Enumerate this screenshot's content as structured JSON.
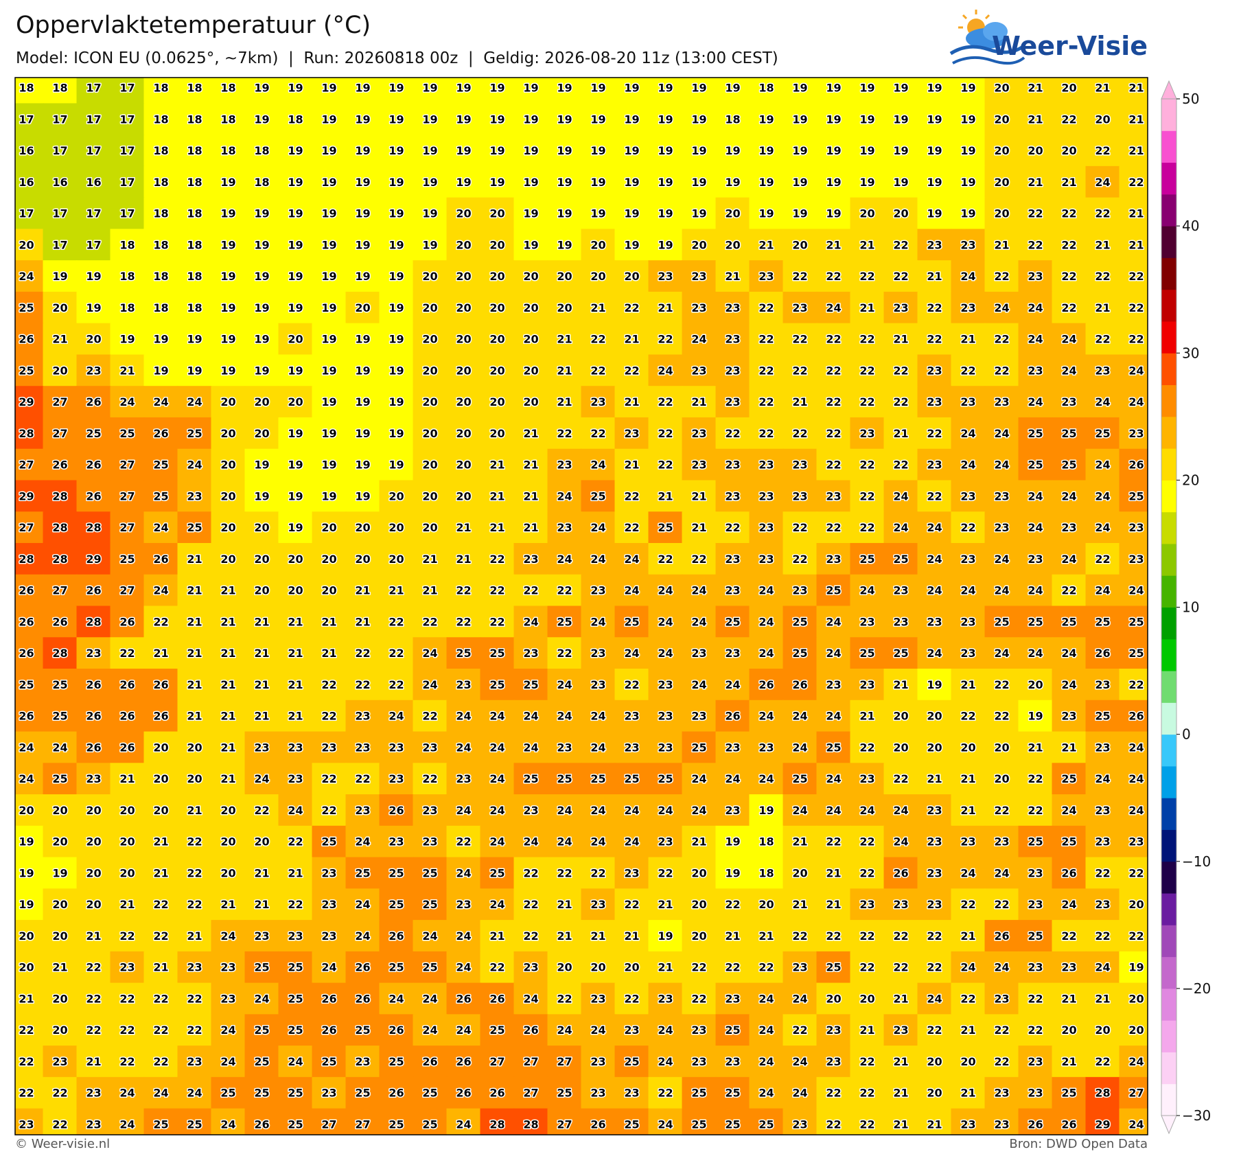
{
  "header": {
    "title": "Oppervlaktetemperatuur (°C)",
    "subtitle": "Model: ICON EU (0.0625°, ~7km)  |  Run: 20260818 00z  |  Geldig: 2026-08-20 11z (13:00 CEST)"
  },
  "logo": {
    "text": "Weer-Visie"
  },
  "map": {
    "rows": [
      [
        18,
        18,
        17,
        17,
        18,
        18,
        18,
        19,
        19,
        19,
        19,
        19,
        19,
        19,
        19,
        19,
        19,
        19,
        19,
        19,
        19,
        19,
        18,
        19,
        19,
        19,
        19,
        19,
        19,
        20,
        21,
        20,
        21,
        21
      ],
      [
        17,
        17,
        17,
        17,
        18,
        18,
        18,
        19,
        18,
        19,
        19,
        19,
        19,
        19,
        19,
        19,
        19,
        19,
        19,
        19,
        19,
        18,
        19,
        19,
        19,
        19,
        19,
        19,
        19,
        20,
        21,
        22,
        20,
        21
      ],
      [
        16,
        17,
        17,
        17,
        18,
        18,
        18,
        18,
        19,
        19,
        19,
        19,
        19,
        19,
        19,
        19,
        19,
        19,
        19,
        19,
        19,
        19,
        19,
        19,
        19,
        19,
        19,
        19,
        19,
        20,
        20,
        20,
        22,
        21
      ],
      [
        16,
        16,
        16,
        17,
        18,
        18,
        19,
        18,
        19,
        19,
        19,
        19,
        19,
        19,
        19,
        19,
        19,
        19,
        19,
        19,
        19,
        19,
        19,
        19,
        19,
        19,
        19,
        19,
        19,
        20,
        21,
        21,
        24,
        22
      ],
      [
        17,
        17,
        17,
        17,
        18,
        18,
        19,
        19,
        19,
        19,
        19,
        19,
        19,
        20,
        20,
        19,
        19,
        19,
        19,
        19,
        19,
        20,
        19,
        19,
        19,
        20,
        20,
        19,
        19,
        20,
        22,
        22,
        22,
        21
      ],
      [
        20,
        17,
        17,
        18,
        18,
        18,
        19,
        19,
        19,
        19,
        19,
        19,
        19,
        20,
        20,
        19,
        19,
        20,
        19,
        19,
        20,
        20,
        21,
        20,
        21,
        21,
        22,
        23,
        23,
        21,
        22,
        22,
        21,
        21
      ],
      [
        24,
        19,
        19,
        18,
        18,
        18,
        19,
        19,
        19,
        19,
        19,
        19,
        20,
        20,
        20,
        20,
        20,
        20,
        20,
        23,
        23,
        21,
        23,
        22,
        22,
        22,
        22,
        21,
        24,
        22,
        23,
        22,
        22,
        22
      ],
      [
        25,
        20,
        19,
        18,
        18,
        18,
        19,
        19,
        19,
        19,
        20,
        19,
        20,
        20,
        20,
        20,
        20,
        21,
        22,
        21,
        23,
        23,
        22,
        23,
        24,
        21,
        23,
        22,
        23,
        24,
        24,
        22,
        21,
        22
      ],
      [
        26,
        21,
        20,
        19,
        19,
        19,
        19,
        19,
        20,
        19,
        19,
        19,
        20,
        20,
        20,
        20,
        21,
        22,
        21,
        22,
        24,
        23,
        22,
        22,
        22,
        22,
        21,
        22,
        21,
        22,
        24,
        24,
        22,
        22
      ],
      [
        25,
        20,
        23,
        21,
        19,
        19,
        19,
        19,
        19,
        19,
        19,
        19,
        20,
        20,
        20,
        20,
        21,
        22,
        22,
        24,
        23,
        23,
        22,
        22,
        22,
        22,
        22,
        23,
        22,
        22,
        23,
        24,
        23,
        24
      ],
      [
        29,
        27,
        26,
        24,
        24,
        24,
        20,
        20,
        20,
        19,
        19,
        19,
        20,
        20,
        20,
        20,
        21,
        23,
        21,
        22,
        21,
        23,
        22,
        21,
        22,
        22,
        22,
        23,
        23,
        23,
        24,
        23,
        24,
        24
      ],
      [
        28,
        27,
        25,
        25,
        26,
        25,
        20,
        20,
        19,
        19,
        19,
        19,
        20,
        20,
        20,
        21,
        22,
        22,
        23,
        22,
        23,
        22,
        22,
        22,
        22,
        23,
        21,
        22,
        24,
        24,
        25,
        25,
        25,
        23
      ],
      [
        27,
        26,
        26,
        27,
        25,
        24,
        20,
        19,
        19,
        19,
        19,
        19,
        20,
        20,
        21,
        21,
        23,
        24,
        21,
        22,
        23,
        23,
        23,
        23,
        22,
        22,
        22,
        23,
        24,
        24,
        25,
        25,
        24,
        26
      ],
      [
        29,
        28,
        26,
        27,
        25,
        23,
        20,
        19,
        19,
        19,
        19,
        20,
        20,
        20,
        21,
        21,
        24,
        25,
        22,
        21,
        21,
        23,
        23,
        23,
        23,
        22,
        24,
        22,
        23,
        23,
        24,
        24,
        24,
        25
      ],
      [
        27,
        28,
        28,
        27,
        24,
        25,
        20,
        20,
        19,
        20,
        20,
        20,
        20,
        21,
        21,
        21,
        23,
        24,
        22,
        25,
        21,
        22,
        23,
        22,
        22,
        22,
        24,
        24,
        22,
        23,
        24,
        23,
        24,
        23
      ],
      [
        28,
        28,
        29,
        25,
        26,
        21,
        20,
        20,
        20,
        20,
        20,
        20,
        21,
        21,
        22,
        23,
        24,
        24,
        24,
        22,
        22,
        23,
        23,
        22,
        23,
        25,
        25,
        24,
        23,
        24,
        23,
        24,
        22,
        23
      ],
      [
        26,
        27,
        26,
        27,
        24,
        21,
        21,
        20,
        20,
        20,
        21,
        21,
        21,
        22,
        22,
        22,
        22,
        23,
        24,
        24,
        24,
        23,
        24,
        23,
        25,
        24,
        23,
        24,
        24,
        24,
        24,
        22,
        24,
        24
      ],
      [
        26,
        26,
        28,
        26,
        22,
        21,
        21,
        21,
        21,
        21,
        21,
        22,
        22,
        22,
        22,
        24,
        25,
        24,
        25,
        24,
        24,
        25,
        24,
        25,
        24,
        23,
        23,
        23,
        23,
        25,
        25,
        25,
        25,
        25
      ],
      [
        26,
        28,
        23,
        22,
        21,
        21,
        21,
        21,
        21,
        21,
        22,
        22,
        24,
        25,
        25,
        23,
        22,
        23,
        24,
        24,
        23,
        23,
        24,
        25,
        24,
        25,
        25,
        24,
        23,
        24,
        24,
        24,
        26,
        25
      ],
      [
        25,
        25,
        26,
        26,
        26,
        21,
        21,
        21,
        21,
        22,
        22,
        22,
        24,
        23,
        25,
        25,
        24,
        23,
        22,
        23,
        24,
        24,
        26,
        26,
        23,
        23,
        21,
        19,
        21,
        22,
        20,
        24,
        23,
        22
      ],
      [
        26,
        25,
        26,
        26,
        26,
        21,
        21,
        21,
        21,
        22,
        23,
        24,
        22,
        24,
        24,
        24,
        24,
        24,
        23,
        23,
        23,
        26,
        24,
        24,
        24,
        21,
        20,
        20,
        22,
        22,
        19,
        23,
        25,
        26
      ],
      [
        24,
        24,
        26,
        26,
        20,
        20,
        21,
        23,
        23,
        23,
        23,
        23,
        23,
        24,
        24,
        24,
        23,
        24,
        23,
        23,
        25,
        23,
        23,
        24,
        25,
        22,
        20,
        20,
        20,
        20,
        21,
        21,
        23,
        24
      ],
      [
        24,
        25,
        23,
        21,
        20,
        20,
        21,
        24,
        23,
        22,
        22,
        23,
        22,
        23,
        24,
        25,
        25,
        25,
        25,
        25,
        24,
        24,
        24,
        25,
        24,
        23,
        22,
        21,
        21,
        20,
        22,
        25,
        24,
        24
      ],
      [
        20,
        20,
        20,
        20,
        20,
        21,
        20,
        22,
        24,
        22,
        23,
        26,
        23,
        24,
        24,
        23,
        24,
        24,
        24,
        24,
        24,
        23,
        19,
        24,
        24,
        24,
        24,
        23,
        21,
        22,
        22,
        24,
        23,
        24
      ],
      [
        19,
        20,
        20,
        20,
        21,
        22,
        20,
        20,
        22,
        25,
        24,
        23,
        23,
        22,
        24,
        24,
        24,
        24,
        24,
        23,
        21,
        19,
        18,
        21,
        22,
        22,
        24,
        23,
        23,
        23,
        25,
        25,
        23,
        23
      ],
      [
        19,
        19,
        20,
        20,
        21,
        22,
        20,
        21,
        21,
        23,
        25,
        25,
        25,
        24,
        25,
        22,
        22,
        22,
        23,
        22,
        20,
        19,
        18,
        20,
        21,
        22,
        26,
        23,
        24,
        24,
        23,
        26,
        22,
        22
      ],
      [
        19,
        20,
        20,
        21,
        22,
        22,
        21,
        21,
        22,
        23,
        24,
        25,
        25,
        23,
        24,
        22,
        21,
        23,
        22,
        21,
        20,
        22,
        20,
        21,
        21,
        23,
        23,
        23,
        22,
        22,
        23,
        24,
        23,
        20
      ],
      [
        20,
        20,
        21,
        22,
        22,
        21,
        24,
        23,
        23,
        23,
        24,
        26,
        24,
        24,
        21,
        22,
        21,
        21,
        21,
        19,
        20,
        21,
        21,
        22,
        22,
        22,
        22,
        22,
        21,
        26,
        25,
        22,
        22,
        22
      ],
      [
        20,
        21,
        22,
        23,
        21,
        23,
        23,
        25,
        25,
        24,
        26,
        25,
        25,
        24,
        22,
        23,
        20,
        20,
        20,
        21,
        22,
        22,
        22,
        23,
        25,
        22,
        22,
        22,
        24,
        24,
        23,
        23,
        24,
        19
      ],
      [
        21,
        20,
        22,
        22,
        22,
        22,
        23,
        24,
        25,
        26,
        26,
        24,
        24,
        26,
        26,
        24,
        22,
        23,
        22,
        23,
        22,
        23,
        24,
        24,
        20,
        20,
        21,
        24,
        22,
        23,
        22,
        21,
        21,
        20
      ],
      [
        22,
        20,
        22,
        22,
        22,
        22,
        24,
        25,
        25,
        26,
        25,
        26,
        24,
        24,
        25,
        26,
        24,
        24,
        23,
        24,
        23,
        25,
        24,
        22,
        23,
        21,
        23,
        22,
        21,
        22,
        22,
        20,
        20,
        20
      ],
      [
        22,
        23,
        21,
        22,
        22,
        23,
        24,
        25,
        24,
        25,
        23,
        25,
        26,
        26,
        27,
        27,
        27,
        23,
        25,
        24,
        23,
        23,
        24,
        24,
        23,
        22,
        21,
        20,
        20,
        22,
        23,
        21,
        22,
        24
      ],
      [
        22,
        22,
        23,
        24,
        24,
        24,
        25,
        25,
        25,
        23,
        25,
        26,
        25,
        26,
        26,
        27,
        25,
        23,
        23,
        22,
        25,
        25,
        24,
        24,
        22,
        22,
        21,
        20,
        21,
        23,
        23,
        25,
        28,
        27
      ],
      [
        23,
        22,
        23,
        24,
        25,
        25,
        24,
        26,
        25,
        27,
        27,
        25,
        25,
        24,
        28,
        28,
        27,
        26,
        25,
        24,
        25,
        25,
        25,
        23,
        22,
        22,
        21,
        21,
        23,
        23,
        26,
        26,
        29,
        24
      ]
    ]
  },
  "colorbar": {
    "lim": [
      -30,
      50
    ],
    "ticks": [
      50,
      40,
      30,
      20,
      10,
      0,
      {
        "value": -10,
        "label": "−10"
      },
      {
        "value": -20,
        "label": "−20"
      },
      {
        "value": -30,
        "label": "−30"
      }
    ],
    "colors": [
      "#fff0fc",
      "#fcd0f4",
      "#f4a8ec",
      "#e088e0",
      "#c468cc",
      "#a048b8",
      "#6a1ca0",
      "#1e0048",
      "#001478",
      "#0040a8",
      "#00a0e8",
      "#38c8fa",
      "#c8fae0",
      "#70dc70",
      "#00c800",
      "#00a000",
      "#46b400",
      "#8cc800",
      "#c8dc00",
      "#ffff00",
      "#ffdc00",
      "#ffb400",
      "#ff8c00",
      "#ff5000",
      "#f00000",
      "#c00000",
      "#800000",
      "#500030",
      "#880070",
      "#c8009c",
      "#f850d0",
      "#ffb0dc"
    ]
  },
  "footer": {
    "left": "© Weer-visie.nl",
    "right": "Bron: DWD Open Data"
  }
}
